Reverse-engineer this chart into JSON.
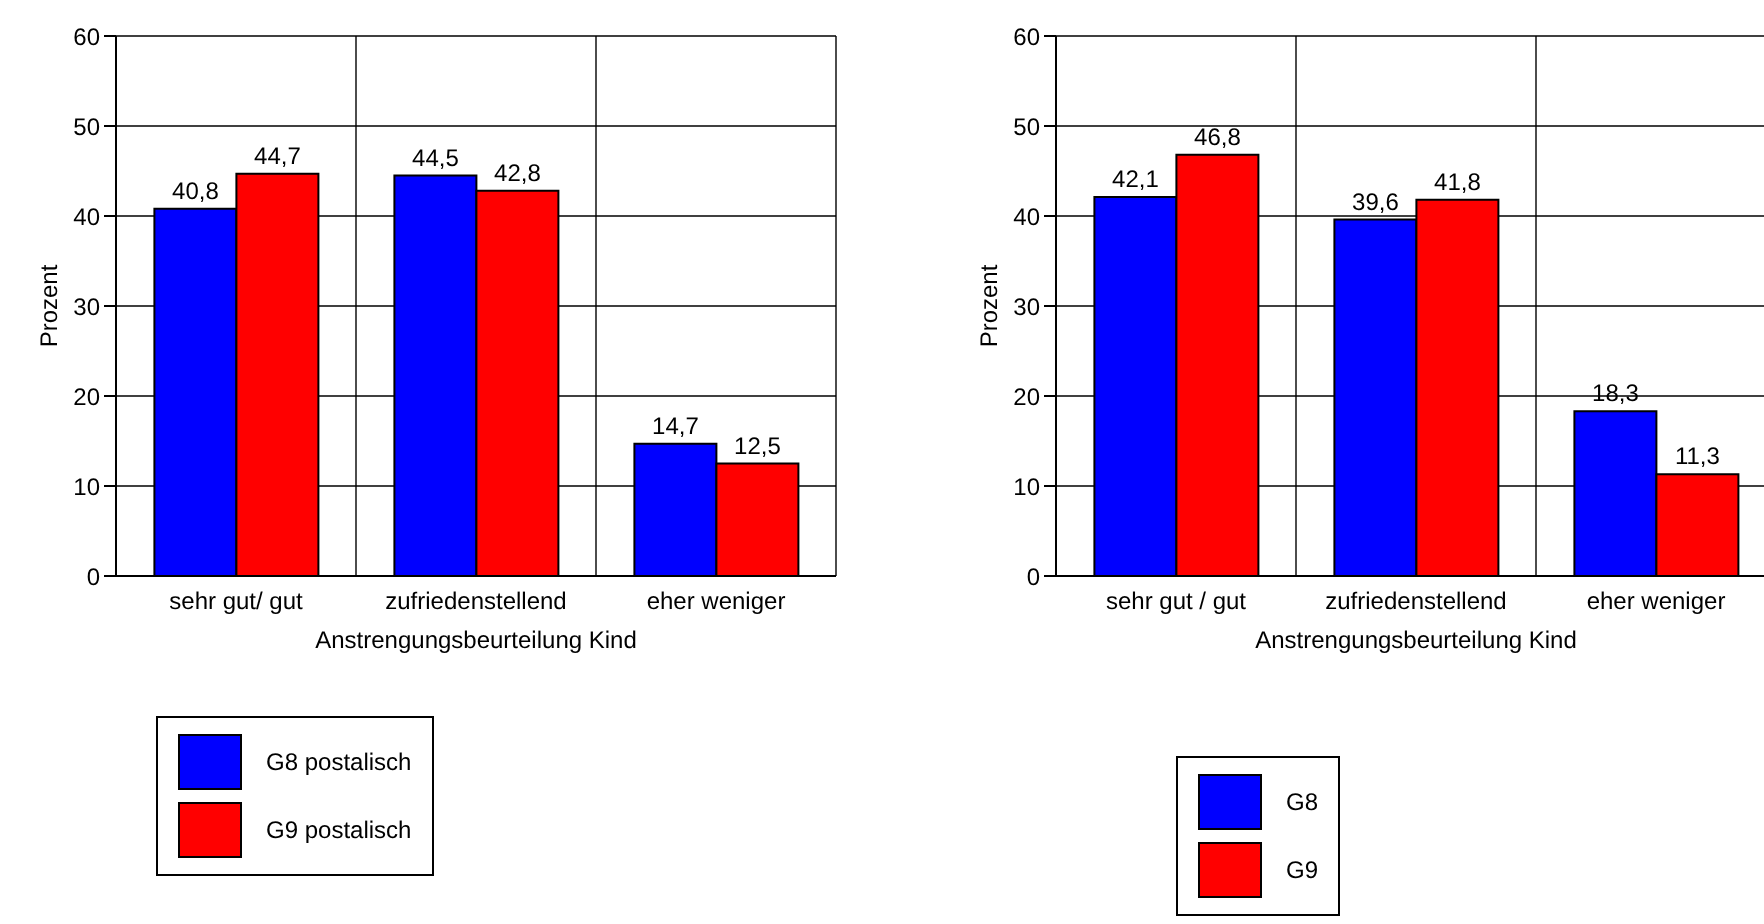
{
  "chart_data": [
    {
      "type": "bar",
      "xlabel": "Anstrengungsbeurteilung Kind",
      "ylabel": "Prozent",
      "categories": [
        "sehr gut/ gut",
        "zufriedenstellend",
        "eher weniger"
      ],
      "series": [
        {
          "name": "G8 postalisch",
          "color": "#0000ff",
          "values": [
            40.8,
            44.5,
            14.7
          ],
          "value_labels": [
            "40,8",
            "44,5",
            "14,7"
          ]
        },
        {
          "name": "G9 postalisch",
          "color": "#ff0000",
          "values": [
            44.7,
            42.8,
            12.5
          ],
          "value_labels": [
            "44,7",
            "42,8",
            "12,5"
          ]
        }
      ],
      "ylim": [
        0,
        60
      ],
      "yticks": [
        0,
        10,
        20,
        30,
        40,
        50,
        60
      ],
      "grid": true,
      "legend": "bottom"
    },
    {
      "type": "bar",
      "xlabel": "Anstrengungsbeurteilung Kind",
      "ylabel": "Prozent",
      "categories": [
        "sehr gut / gut",
        "zufriedenstellend",
        "eher weniger"
      ],
      "series": [
        {
          "name": "G8",
          "color": "#0000ff",
          "values": [
            42.1,
            39.6,
            18.3
          ],
          "value_labels": [
            "42,1",
            "39,6",
            "18,3"
          ]
        },
        {
          "name": "G9",
          "color": "#ff0000",
          "values": [
            46.8,
            41.8,
            11.3
          ],
          "value_labels": [
            "46,8",
            "41,8",
            "11,3"
          ]
        }
      ],
      "ylim": [
        0,
        60
      ],
      "yticks": [
        0,
        10,
        20,
        30,
        40,
        50,
        60
      ],
      "grid": true,
      "legend": "bottom"
    }
  ]
}
